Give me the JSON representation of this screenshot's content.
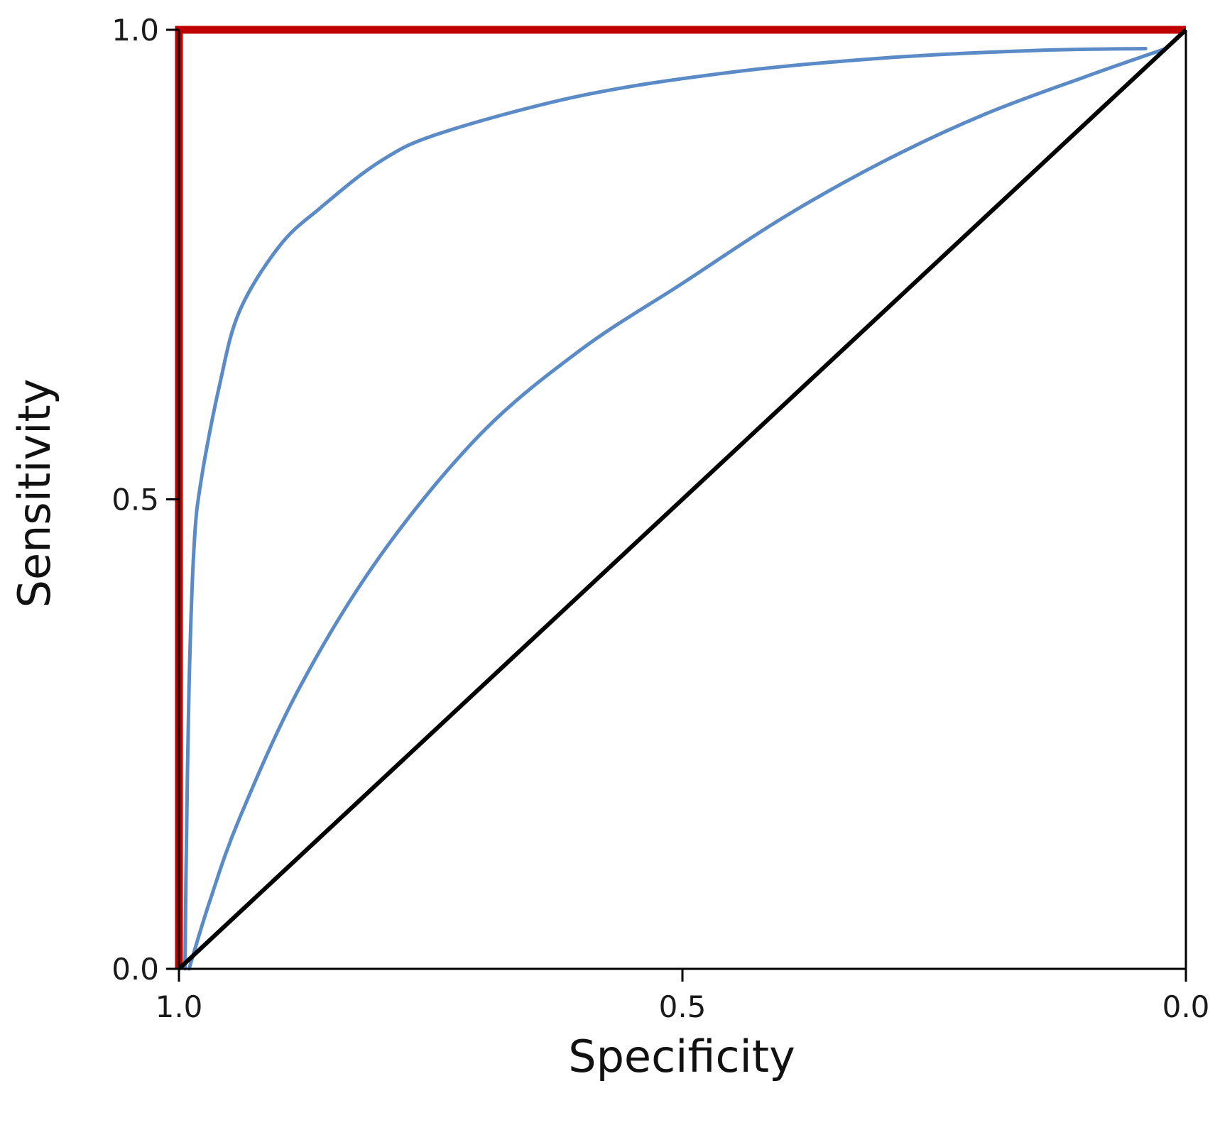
{
  "chart_data": {
    "type": "line",
    "title": "",
    "xlabel": "Specificity",
    "ylabel": "Sensitivity",
    "x_reversed": true,
    "xlim": [
      1.0,
      0.0
    ],
    "ylim": [
      0.0,
      1.0
    ],
    "x_ticks": [
      "1.0",
      "0.5",
      "0.0"
    ],
    "y_ticks": [
      "0.0",
      "0.5",
      "1.0"
    ],
    "grid": false,
    "legend": "none",
    "series": [
      {
        "color": "#c00000",
        "style": "thick-step",
        "points": [
          [
            1.0,
            0.0
          ],
          [
            1.0,
            1.0
          ],
          [
            0.0,
            1.0
          ]
        ]
      },
      {
        "color": "#5b8bc6",
        "style": "curve",
        "points": [
          [
            0.994,
            0.0
          ],
          [
            0.993,
            0.1
          ],
          [
            0.99,
            0.3
          ],
          [
            0.985,
            0.45
          ],
          [
            0.978,
            0.52
          ],
          [
            0.96,
            0.62
          ],
          [
            0.94,
            0.7
          ],
          [
            0.9,
            0.77
          ],
          [
            0.86,
            0.81
          ],
          [
            0.8,
            0.86
          ],
          [
            0.74,
            0.89
          ],
          [
            0.6,
            0.93
          ],
          [
            0.45,
            0.955
          ],
          [
            0.3,
            0.97
          ],
          [
            0.15,
            0.978
          ],
          [
            0.04,
            0.98
          ]
        ]
      },
      {
        "color": "#5b8bc6",
        "style": "curve",
        "points": [
          [
            0.99,
            0.0
          ],
          [
            0.97,
            0.07
          ],
          [
            0.94,
            0.16
          ],
          [
            0.88,
            0.3
          ],
          [
            0.8,
            0.44
          ],
          [
            0.7,
            0.57
          ],
          [
            0.6,
            0.66
          ],
          [
            0.5,
            0.73
          ],
          [
            0.4,
            0.8
          ],
          [
            0.3,
            0.86
          ],
          [
            0.2,
            0.91
          ],
          [
            0.1,
            0.95
          ],
          [
            0.02,
            0.98
          ]
        ]
      },
      {
        "color": "#000000",
        "style": "diagonal",
        "points": [
          [
            1.0,
            0.0
          ],
          [
            0.0,
            1.0
          ]
        ]
      }
    ]
  }
}
